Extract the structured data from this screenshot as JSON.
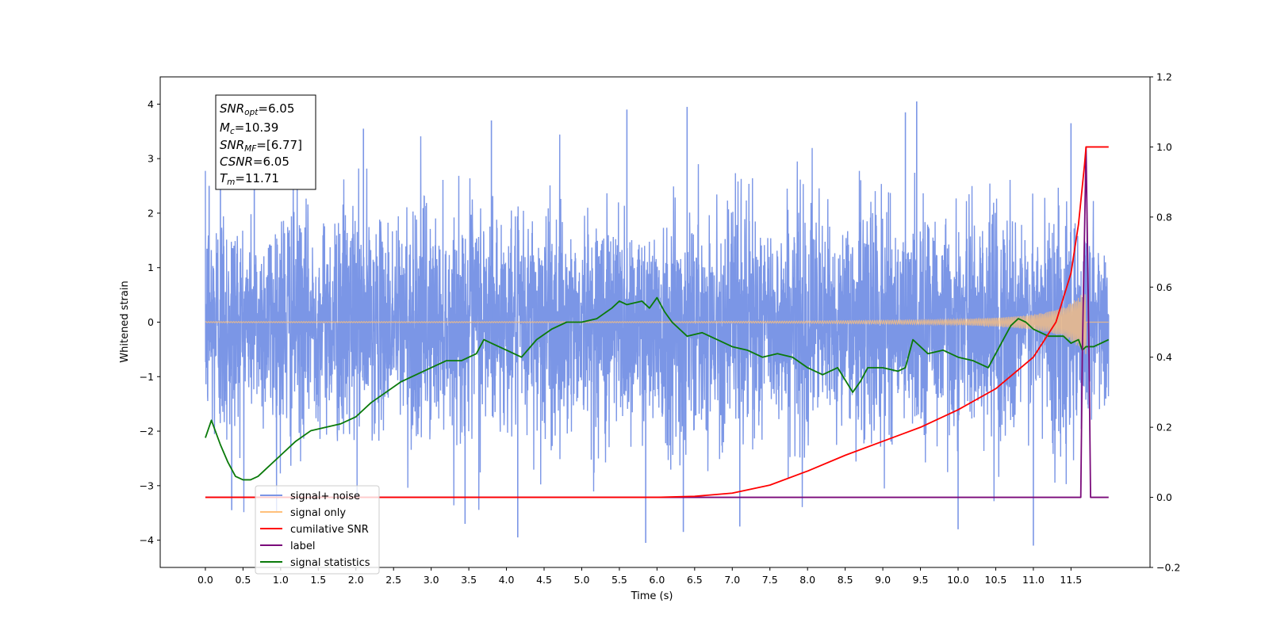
{
  "chart_data": {
    "type": "line",
    "title": "",
    "xlabel": "Time (s)",
    "ylabel_left": "Whitened strain",
    "ylabel_right": "",
    "xlim": [
      -0.6,
      12.55
    ],
    "ylim_left": [
      -4.5,
      4.5
    ],
    "ylim_right": [
      -0.2,
      1.2
    ],
    "xticks": [
      0.0,
      0.5,
      1.0,
      1.5,
      2.0,
      2.5,
      3.0,
      3.5,
      4.0,
      4.5,
      5.0,
      5.5,
      6.0,
      6.5,
      7.0,
      7.5,
      8.0,
      8.5,
      9.0,
      9.5,
      10.0,
      10.5,
      11.0,
      11.5
    ],
    "xtick_labels": [
      "0.0",
      "0.5",
      "1.0",
      "1.5",
      "2.0",
      "2.5",
      "3.0",
      "3.5",
      "4.0",
      "4.5",
      "5.0",
      "5.5",
      "6.0",
      "6.5",
      "7.0",
      "7.5",
      "8.0",
      "8.5",
      "9.0",
      "9.5",
      "10.0",
      "10.5",
      "11.0",
      "11.5"
    ],
    "yticks_left": [
      -4,
      -3,
      -2,
      -1,
      0,
      1,
      2,
      3,
      4
    ],
    "ytick_labels_left": [
      "−4",
      "−3",
      "−2",
      "−1",
      "0",
      "1",
      "2",
      "3",
      "4"
    ],
    "yticks_right": [
      -0.2,
      0.0,
      0.2,
      0.4,
      0.6,
      0.8,
      1.0,
      1.2
    ],
    "ytick_labels_right": [
      "−0.2",
      "0.0",
      "0.2",
      "0.4",
      "0.6",
      "0.8",
      "1.0",
      "1.2"
    ],
    "grid": false,
    "legend_position": "lower-left",
    "legend": [
      {
        "label": "signal+ noise",
        "color": "#7b96e6"
      },
      {
        "label": "signal only",
        "color": "#ffc07a"
      },
      {
        "label": "cumilative SNR",
        "color": "#ff0000"
      },
      {
        "label": "label",
        "color": "#7a0a7a"
      },
      {
        "label": "signal statistics",
        "color": "#0a7a0a"
      }
    ],
    "annotation": [
      {
        "base": "SNR",
        "sub": "opt",
        "value": "=6.05"
      },
      {
        "base": "M",
        "sub": "c",
        "value": "=10.39"
      },
      {
        "base": "SNR",
        "sub": "MF",
        "value": "=[6.77]"
      },
      {
        "base": "CSNR",
        "sub": "",
        "value": "=6.05"
      },
      {
        "base": "T",
        "sub": "m",
        "value": "=11.71"
      }
    ],
    "series": [
      {
        "name": "signal+ noise",
        "axis": "left",
        "color": "#7b96e6",
        "x_range": [
          0.0,
          12.0
        ],
        "envelope": {
          "typical_amplitude": 1.0,
          "max": 4.05,
          "min": -4.1
        },
        "notable_peaks": [
          [
            0.05,
            2.5
          ],
          [
            0.2,
            3.55
          ],
          [
            0.65,
            2.7
          ],
          [
            2.1,
            3.55
          ],
          [
            3.8,
            3.7
          ],
          [
            5.6,
            3.9
          ],
          [
            6.4,
            3.95
          ],
          [
            9.3,
            3.85
          ],
          [
            9.45,
            4.05
          ],
          [
            11.5,
            3.65
          ]
        ],
        "notable_troughs": [
          [
            0.35,
            -3.45
          ],
          [
            3.45,
            -3.7
          ],
          [
            4.15,
            -3.95
          ],
          [
            5.85,
            -4.05
          ],
          [
            6.35,
            -3.85
          ],
          [
            7.1,
            -3.75
          ],
          [
            10.0,
            -3.8
          ],
          [
            11.0,
            -4.1
          ]
        ]
      },
      {
        "name": "signal only",
        "axis": "left",
        "color": "#ffc07a",
        "x": [
          0.0,
          6.0,
          8.0,
          9.5,
          10.0,
          10.5,
          10.8,
          11.0,
          11.2,
          11.4,
          11.6,
          11.7
        ],
        "amplitude": [
          0.01,
          0.01,
          0.02,
          0.04,
          0.05,
          0.08,
          0.11,
          0.14,
          0.19,
          0.27,
          0.45,
          0.6
        ]
      },
      {
        "name": "cumilative SNR",
        "axis": "right",
        "color": "#ff0000",
        "x": [
          0.0,
          6.0,
          6.5,
          7.0,
          7.5,
          8.0,
          8.5,
          9.0,
          9.5,
          10.0,
          10.5,
          11.0,
          11.3,
          11.5,
          11.6,
          11.68,
          11.7,
          12.0
        ],
        "y": [
          0.0,
          0.0,
          0.003,
          0.012,
          0.035,
          0.075,
          0.12,
          0.16,
          0.2,
          0.25,
          0.31,
          0.4,
          0.5,
          0.64,
          0.78,
          0.95,
          1.0,
          1.0
        ]
      },
      {
        "name": "label",
        "axis": "right",
        "color": "#7a0a7a",
        "x": [
          0.0,
          11.63,
          11.65,
          11.7,
          11.74,
          11.76,
          12.0
        ],
        "y": [
          0.0,
          0.0,
          0.4,
          1.0,
          0.4,
          0.0,
          0.0
        ]
      },
      {
        "name": "signal statistics",
        "axis": "right",
        "color": "#0a7a0a",
        "x": [
          0.0,
          0.08,
          0.2,
          0.3,
          0.4,
          0.5,
          0.6,
          0.7,
          0.8,
          1.0,
          1.2,
          1.4,
          1.6,
          1.8,
          2.0,
          2.2,
          2.4,
          2.6,
          2.8,
          3.0,
          3.2,
          3.4,
          3.6,
          3.7,
          3.8,
          4.0,
          4.2,
          4.4,
          4.6,
          4.8,
          5.0,
          5.2,
          5.4,
          5.5,
          5.6,
          5.8,
          5.9,
          6.0,
          6.1,
          6.2,
          6.4,
          6.6,
          6.8,
          7.0,
          7.2,
          7.4,
          7.6,
          7.8,
          8.0,
          8.2,
          8.4,
          8.6,
          8.7,
          8.8,
          9.0,
          9.2,
          9.3,
          9.4,
          9.6,
          9.8,
          10.0,
          10.2,
          10.4,
          10.6,
          10.7,
          10.8,
          10.9,
          11.0,
          11.2,
          11.4,
          11.5,
          11.6,
          11.65,
          11.7,
          11.8,
          11.9,
          12.0
        ],
        "y": [
          0.17,
          0.22,
          0.15,
          0.1,
          0.06,
          0.05,
          0.05,
          0.06,
          0.08,
          0.12,
          0.16,
          0.19,
          0.2,
          0.21,
          0.23,
          0.27,
          0.3,
          0.33,
          0.35,
          0.37,
          0.39,
          0.39,
          0.41,
          0.45,
          0.44,
          0.42,
          0.4,
          0.45,
          0.48,
          0.5,
          0.5,
          0.51,
          0.54,
          0.56,
          0.55,
          0.56,
          0.54,
          0.57,
          0.53,
          0.5,
          0.46,
          0.47,
          0.45,
          0.43,
          0.42,
          0.4,
          0.41,
          0.4,
          0.37,
          0.35,
          0.37,
          0.3,
          0.33,
          0.37,
          0.37,
          0.36,
          0.37,
          0.45,
          0.41,
          0.42,
          0.4,
          0.39,
          0.37,
          0.45,
          0.49,
          0.51,
          0.5,
          0.48,
          0.46,
          0.46,
          0.44,
          0.45,
          0.42,
          0.43,
          0.43,
          0.44,
          0.45
        ]
      }
    ]
  }
}
